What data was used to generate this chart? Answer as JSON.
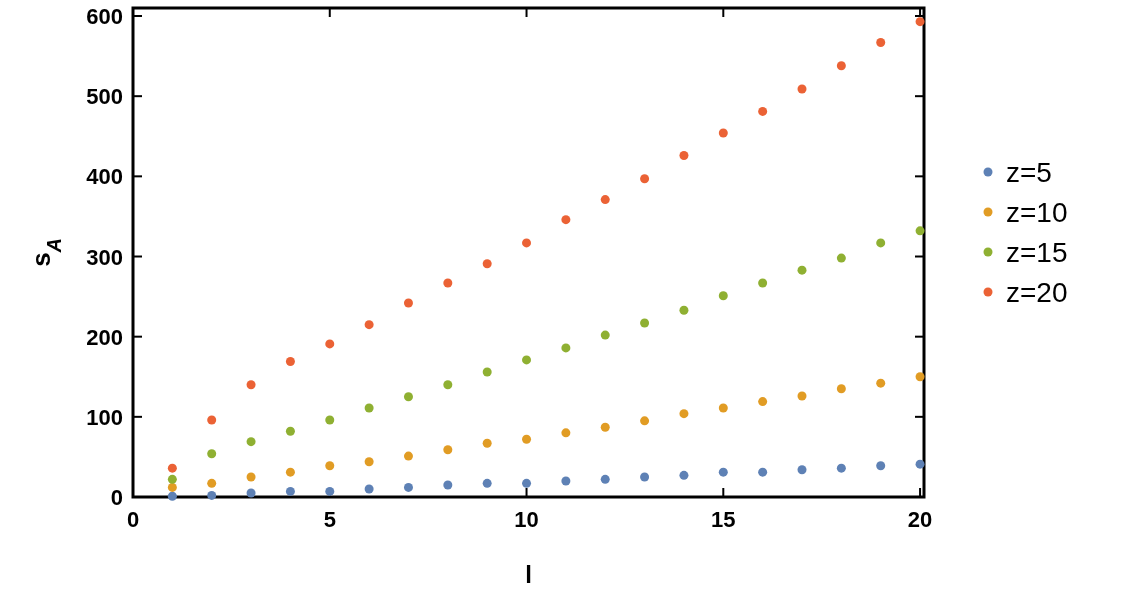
{
  "chart_data": {
    "type": "scatter",
    "xlabel": "l",
    "ylabel": "s$_{A}$",
    "x": [
      1,
      2,
      3,
      4,
      5,
      6,
      7,
      8,
      9,
      10,
      11,
      12,
      13,
      14,
      15,
      16,
      17,
      18,
      19,
      20
    ],
    "xlim": [
      0,
      20.1
    ],
    "xticks": [
      0,
      5,
      10,
      15,
      20
    ],
    "ylim": [
      0,
      610
    ],
    "yticks": [
      0,
      100,
      200,
      300,
      400,
      500,
      600
    ],
    "grid": false,
    "legend": "right",
    "marker": "circle",
    "series": [
      {
        "name": "z=5",
        "color": "#5e81b5",
        "values": [
          1,
          2,
          5,
          7,
          7,
          10,
          12,
          15,
          17,
          17,
          20,
          22,
          25,
          27,
          31,
          31,
          34,
          36,
          39,
          41
        ]
      },
      {
        "name": "z=10",
        "color": "#e19c24",
        "values": [
          12,
          17,
          25,
          31,
          39,
          44,
          51,
          59,
          67,
          72,
          80,
          87,
          95,
          104,
          111,
          119,
          126,
          135,
          142,
          150
        ]
      },
      {
        "name": "z=15",
        "color": "#8fb032",
        "values": [
          22,
          54,
          69,
          82,
          96,
          111,
          125,
          140,
          156,
          171,
          186,
          202,
          217,
          233,
          251,
          267,
          283,
          298,
          317,
          332
        ]
      },
      {
        "name": "z=20",
        "color": "#eb6235",
        "values": [
          36,
          96,
          140,
          169,
          191,
          215,
          242,
          267,
          291,
          317,
          346,
          371,
          397,
          426,
          454,
          481,
          509,
          538,
          567,
          593
        ]
      }
    ]
  }
}
